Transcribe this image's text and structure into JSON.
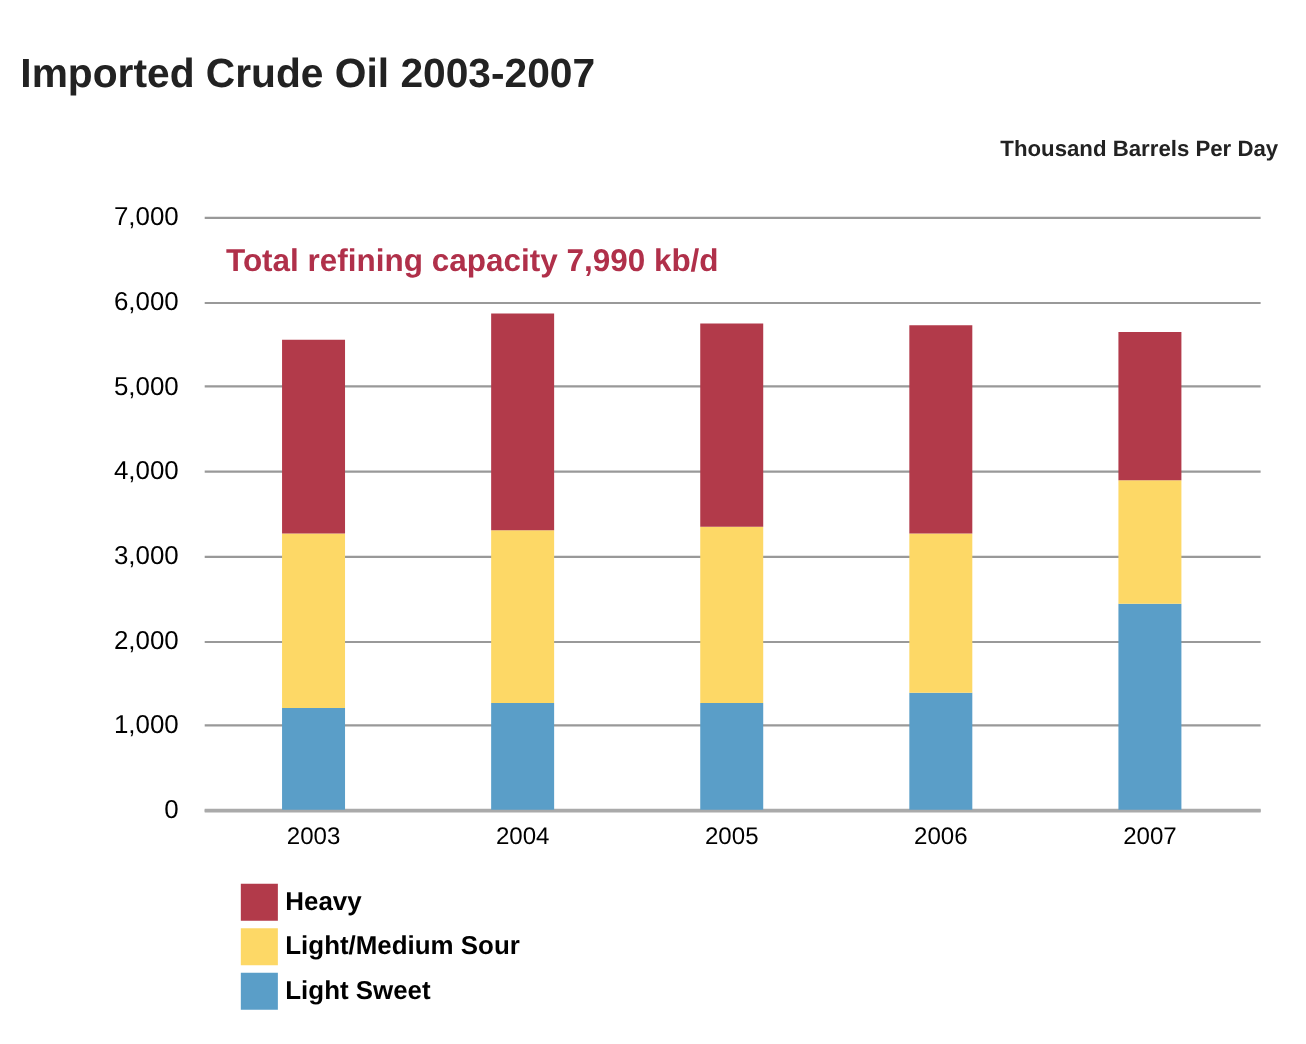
{
  "chart_data": {
    "type": "bar",
    "title": "Imported Crude Oil 2003-2007",
    "ylabel": "Thousand Barrels Per Day",
    "annotations": [
      "Total refining capacity 7,990 kb/d"
    ],
    "categories": [
      "2003",
      "2004",
      "2005",
      "2006",
      "2007"
    ],
    "stacked": true,
    "series": [
      {
        "name": "Light Sweet",
        "color": "#5a9ec8",
        "values": [
          1200,
          1260,
          1260,
          1380,
          2430
        ]
      },
      {
        "name": "Light/Medium Sour",
        "color": "#fdd866",
        "values": [
          2060,
          2040,
          2080,
          1880,
          1460
        ]
      },
      {
        "name": "Heavy",
        "color": "#b23a4a",
        "values": [
          2290,
          2560,
          2400,
          2460,
          1750
        ]
      }
    ],
    "ylim": [
      0,
      7000
    ],
    "yticks": [
      0,
      {
        "value": 1000,
        "label": "1,000"
      },
      {
        "value": 2000,
        "label": "2,000"
      },
      {
        "value": 3000,
        "label": "3,000"
      },
      {
        "value": 4000,
        "label": "4,000"
      },
      {
        "value": 5000,
        "label": "5,000"
      },
      {
        "value": 6000,
        "label": "6,000"
      },
      {
        "value": 7000,
        "label": "7,000"
      }
    ],
    "grid": "y",
    "legend": "bottom left"
  }
}
